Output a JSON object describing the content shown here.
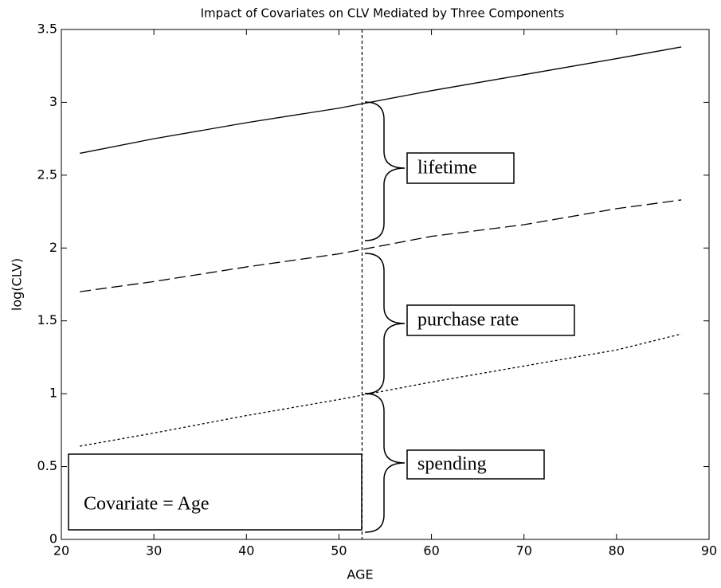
{
  "chart_data": {
    "type": "line",
    "title": "Impact of Covariates on CLV Mediated by Three Components",
    "xlabel": "AGE",
    "ylabel": "log(CLV)",
    "x": [
      22,
      30,
      40,
      50,
      60,
      70,
      80,
      87
    ],
    "series": [
      {
        "color": "#000000",
        "style": "solid",
        "values": [
          2.65,
          2.75,
          2.86,
          2.96,
          3.08,
          3.19,
          3.3,
          3.38
        ]
      },
      {
        "color": "#000000",
        "style": "dashed",
        "values": [
          1.7,
          1.77,
          1.87,
          1.96,
          2.08,
          2.16,
          2.27,
          2.33
        ]
      },
      {
        "color": "#000000",
        "style": "dotted",
        "values": [
          0.64,
          0.73,
          0.85,
          0.96,
          1.08,
          1.19,
          1.3,
          1.41
        ]
      }
    ],
    "vline": 52.5,
    "xlim": [
      20,
      90
    ],
    "xticks": [
      20,
      30,
      40,
      50,
      60,
      70,
      80,
      90
    ],
    "ylim": [
      0,
      3.5
    ],
    "yticks": [
      0,
      0.5,
      1,
      1.5,
      2,
      2.5,
      3,
      3.5
    ],
    "annotations": [
      "lifetime",
      "purchase rate",
      "spending",
      "Covariate = Age"
    ]
  }
}
